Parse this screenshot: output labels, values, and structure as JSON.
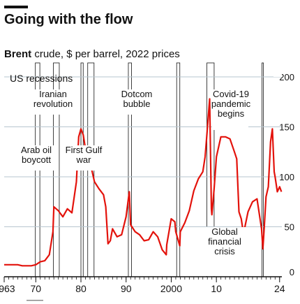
{
  "header": {
    "headline": "Going with the flow",
    "subtitle_bold": "Brent",
    "subtitle_rest": " crude, $ per barrel, 2022 prices"
  },
  "legend": {
    "recessions_label": "US recessions"
  },
  "colors": {
    "line": "#E3120B",
    "recession": "#ffffff",
    "grid": "#b7c6cf",
    "axis": "#121212",
    "text": "#121212",
    "annotation_bg": "#ffffff"
  },
  "annotations": [
    {
      "id": "iranian-revolution",
      "lines": [
        "Iranian",
        "revolution"
      ],
      "x": 1979.3
    },
    {
      "id": "dotcom-bubble",
      "lines": [
        "Dotcom",
        "bubble"
      ],
      "x": 2001.0
    },
    {
      "id": "covid-pandemic",
      "lines": [
        "Covid-19",
        "pandemic",
        "begins"
      ],
      "x": 2020.2
    },
    {
      "id": "arab-oil-boycott",
      "lines": [
        "Arab oil",
        "boycott"
      ],
      "x": 1973.8
    },
    {
      "id": "first-gulf-war",
      "lines": [
        "First Gulf",
        "war"
      ],
      "x": 1990.6
    },
    {
      "id": "global-financial-crisis",
      "lines": [
        "Global",
        "financial",
        "crisis"
      ],
      "x": 2008.6
    }
  ],
  "chart_data": {
    "type": "line",
    "title": "Going with the flow",
    "subtitle": "Brent crude, $ per barrel, 2022 prices",
    "xlabel": "",
    "ylabel": "",
    "xlim": [
      1963,
      2024.5
    ],
    "ylim": [
      0,
      200
    ],
    "y_ticks": [
      0,
      50,
      100,
      150,
      200
    ],
    "x_ticks": [
      {
        "value": 1963,
        "label": "1963"
      },
      {
        "value": 1970,
        "label": "70"
      },
      {
        "value": 1980,
        "label": "80"
      },
      {
        "value": 1990,
        "label": "90"
      },
      {
        "value": 2000,
        "label": "2000"
      },
      {
        "value": 2010,
        "label": "10"
      },
      {
        "value": 2024,
        "label": "24"
      }
    ],
    "grid": true,
    "y_axis_position": "right",
    "recessions": [
      [
        1969.9,
        1970.9
      ],
      [
        1973.9,
        1975.2
      ],
      [
        1980.0,
        1980.5
      ],
      [
        1981.5,
        1982.9
      ],
      [
        1990.5,
        1991.2
      ],
      [
        2001.2,
        2001.9
      ],
      [
        2007.9,
        2009.5
      ],
      [
        2020.1,
        2020.4
      ]
    ],
    "series": [
      {
        "x": [
          1963,
          1964,
          1965,
          1966,
          1967,
          1968,
          1969,
          1970,
          1971,
          1972,
          1973,
          1973.8,
          1974,
          1975,
          1976,
          1977,
          1978,
          1979,
          1979.5,
          1980,
          1980.5,
          1981,
          1982,
          1983,
          1984,
          1985,
          1985.5,
          1986,
          1986.5,
          1987,
          1988,
          1989,
          1990,
          1990.7,
          1991,
          1992,
          1993,
          1994,
          1995,
          1996,
          1997,
          1998,
          1998.9,
          1999,
          2000,
          2000.8,
          2001,
          2001.9,
          2002,
          2003,
          2004,
          2005,
          2006,
          2007,
          2007.5,
          2008,
          2008.5,
          2008.9,
          2009,
          2009.5,
          2010,
          2011,
          2012,
          2013,
          2014,
          2014.5,
          2015,
          2015.5,
          2016,
          2017,
          2018,
          2019,
          2020,
          2020.3,
          2020.6,
          2021,
          2021.5,
          2022,
          2022.4,
          2022.8,
          2023,
          2023.5,
          2024,
          2024.4
        ],
        "values": [
          12,
          12,
          12,
          12,
          11,
          11,
          11,
          12,
          15,
          16,
          22,
          45,
          70,
          66,
          60,
          68,
          64,
          95,
          140,
          148,
          142,
          128,
          115,
          95,
          88,
          82,
          70,
          33,
          36,
          48,
          40,
          42,
          60,
          85,
          52,
          45,
          42,
          36,
          37,
          45,
          40,
          27,
          22,
          32,
          58,
          55,
          45,
          31,
          45,
          54,
          66,
          86,
          98,
          105,
          120,
          148,
          178,
          68,
          62,
          88,
          120,
          140,
          140,
          138,
          125,
          118,
          65,
          58,
          43,
          65,
          75,
          78,
          48,
          28,
          50,
          80,
          90,
          135,
          148,
          105,
          100,
          85,
          90,
          85
        ]
      }
    ]
  }
}
